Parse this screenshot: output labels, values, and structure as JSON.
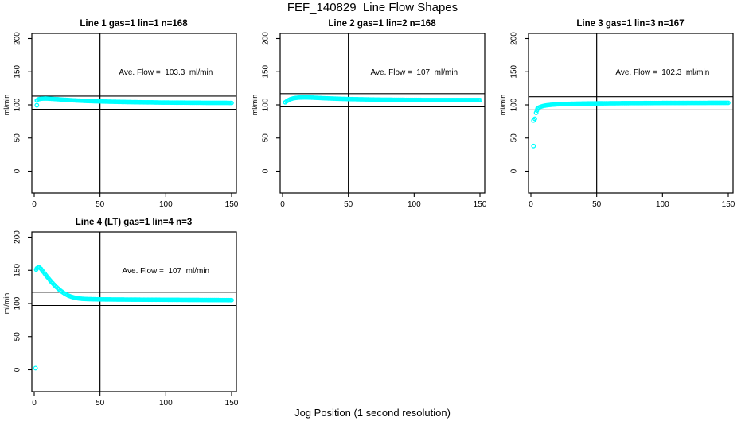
{
  "title": "FEF_140829  Line Flow Shapes",
  "xlabel": "Jog Position (1 second resolution)",
  "marker_color": "#00ffff",
  "axis_color": "#000000",
  "chart_data": [
    {
      "type": "scatter",
      "title": "Line 1 gas=1 lin=1 n=168",
      "annotation": "Ave. Flow =  103.3  ml/min",
      "ave_flow": 103.3,
      "n": 168,
      "ylabel": "ml/min",
      "marker": "open-circle",
      "xticks": [
        0,
        50,
        100,
        150
      ],
      "yticks": [
        0,
        50,
        100,
        150,
        200
      ],
      "xlim": [
        -2,
        154
      ],
      "ylim": [
        -33,
        208
      ],
      "vline": 50,
      "hlines": [
        113.3,
        93.3
      ],
      "grid": false,
      "band": [
        [
          2,
          106.8
        ],
        [
          3,
          108.2
        ],
        [
          4,
          108.8
        ],
        [
          5,
          109.1
        ],
        [
          6,
          109.4
        ],
        [
          8,
          109.6
        ],
        [
          10,
          109.5
        ],
        [
          12,
          109.3
        ],
        [
          15,
          108.9
        ],
        [
          18,
          108.5
        ],
        [
          21,
          108.0
        ],
        [
          24,
          107.6
        ],
        [
          27,
          107.2
        ],
        [
          30,
          106.8
        ],
        [
          34,
          106.4
        ],
        [
          38,
          106.0
        ],
        [
          42,
          105.7
        ],
        [
          46,
          105.4
        ],
        [
          50,
          105.2
        ],
        [
          55,
          104.9
        ],
        [
          60,
          104.7
        ],
        [
          66,
          104.4
        ],
        [
          72,
          104.2
        ],
        [
          78,
          104.0
        ],
        [
          84,
          103.8
        ],
        [
          90,
          103.7
        ],
        [
          96,
          103.5
        ],
        [
          102,
          103.4
        ],
        [
          110,
          103.3
        ],
        [
          118,
          103.2
        ],
        [
          126,
          103.1
        ],
        [
          134,
          103.0
        ],
        [
          142,
          103.0
        ],
        [
          150,
          102.9
        ]
      ],
      "outliers": [
        [
          2,
          99.4
        ]
      ]
    },
    {
      "type": "scatter",
      "title": "Line 2 gas=1 lin=2 n=168",
      "annotation": "Ave. Flow =  107  ml/min",
      "ave_flow": 107,
      "n": 168,
      "ylabel": "ml/min",
      "marker": "open-circle",
      "xticks": [
        0,
        50,
        100,
        150
      ],
      "yticks": [
        0,
        50,
        100,
        150,
        200
      ],
      "xlim": [
        -2,
        154
      ],
      "ylim": [
        -33,
        208
      ],
      "vline": 50,
      "hlines": [
        117,
        97
      ],
      "grid": false,
      "band": [
        [
          2,
          103.8
        ],
        [
          3,
          105.2
        ],
        [
          4,
          106.5
        ],
        [
          5,
          107.6
        ],
        [
          6,
          108.5
        ],
        [
          7,
          109.2
        ],
        [
          8,
          109.8
        ],
        [
          10,
          110.5
        ],
        [
          12,
          110.9
        ],
        [
          14,
          111.1
        ],
        [
          16,
          111.2
        ],
        [
          18,
          111.2
        ],
        [
          20,
          111.1
        ],
        [
          23,
          110.9
        ],
        [
          26,
          110.6
        ],
        [
          29,
          110.3
        ],
        [
          32,
          110.0
        ],
        [
          36,
          109.7
        ],
        [
          40,
          109.4
        ],
        [
          44,
          109.1
        ],
        [
          48,
          108.9
        ],
        [
          52,
          108.7
        ],
        [
          57,
          108.5
        ],
        [
          62,
          108.3
        ],
        [
          68,
          108.1
        ],
        [
          74,
          107.9
        ],
        [
          80,
          107.8
        ],
        [
          86,
          107.7
        ],
        [
          92,
          107.6
        ],
        [
          100,
          107.5
        ],
        [
          110,
          107.4
        ],
        [
          120,
          107.4
        ],
        [
          130,
          107.3
        ],
        [
          140,
          107.3
        ],
        [
          150,
          107.3
        ]
      ],
      "outliers": []
    },
    {
      "type": "scatter",
      "title": "Line 3 gas=1 lin=3 n=167",
      "annotation": "Ave. Flow =  102.3  ml/min",
      "ave_flow": 102.3,
      "n": 167,
      "ylabel": "ml/min",
      "marker": "open-circle",
      "xticks": [
        0,
        50,
        100,
        150
      ],
      "yticks": [
        0,
        50,
        100,
        150,
        200
      ],
      "xlim": [
        -2,
        154
      ],
      "ylim": [
        -33,
        208
      ],
      "vline": 50,
      "hlines": [
        112.3,
        92.3
      ],
      "grid": false,
      "band": [
        [
          5,
          94.3
        ],
        [
          6,
          95.8
        ],
        [
          7,
          96.8
        ],
        [
          8,
          97.5
        ],
        [
          9,
          98.1
        ],
        [
          10,
          98.6
        ],
        [
          12,
          99.3
        ],
        [
          14,
          99.8
        ],
        [
          16,
          100.2
        ],
        [
          18,
          100.5
        ],
        [
          20,
          100.8
        ],
        [
          23,
          101.1
        ],
        [
          26,
          101.3
        ],
        [
          29,
          101.5
        ],
        [
          32,
          101.7
        ],
        [
          36,
          101.8
        ],
        [
          40,
          102.0
        ],
        [
          45,
          102.1
        ],
        [
          50,
          102.2
        ],
        [
          56,
          102.3
        ],
        [
          62,
          102.4
        ],
        [
          68,
          102.5
        ],
        [
          75,
          102.6
        ],
        [
          82,
          102.6
        ],
        [
          90,
          102.7
        ],
        [
          100,
          102.8
        ],
        [
          110,
          102.8
        ],
        [
          120,
          102.9
        ],
        [
          130,
          102.9
        ],
        [
          140,
          103.0
        ],
        [
          150,
          103.0
        ]
      ],
      "outliers": [
        [
          2,
          38
        ],
        [
          2,
          76.5
        ],
        [
          3,
          79
        ],
        [
          4,
          88
        ],
        [
          4.5,
          91.5
        ]
      ]
    },
    {
      "type": "scatter",
      "title": "Line 4 (LT) gas=1 lin=4 n=3",
      "annotation": "Ave. Flow =  107  ml/min",
      "ave_flow": 107,
      "n": 3,
      "ylabel": "ml/min",
      "marker": "open-circle",
      "xticks": [
        0,
        50,
        100,
        150
      ],
      "yticks": [
        0,
        50,
        100,
        150,
        200
      ],
      "xlim": [
        -2,
        154
      ],
      "ylim": [
        -33,
        208
      ],
      "vline": 50,
      "hlines": [
        117,
        97
      ],
      "grid": false,
      "band": [
        [
          1.5,
          151
        ],
        [
          2,
          153
        ],
        [
          3,
          154.5
        ],
        [
          4,
          154.2
        ],
        [
          5,
          152.5
        ],
        [
          6,
          150.2
        ],
        [
          7,
          147.6
        ],
        [
          8,
          145.0
        ],
        [
          9,
          142.4
        ],
        [
          10,
          139.9
        ],
        [
          11,
          137.4
        ],
        [
          12,
          135.0
        ],
        [
          13,
          132.7
        ],
        [
          14,
          130.5
        ],
        [
          15,
          128.4
        ],
        [
          16,
          126.4
        ],
        [
          17,
          124.5
        ],
        [
          18,
          122.7
        ],
        [
          19,
          121.0
        ],
        [
          20,
          119.4
        ],
        [
          21,
          117.9
        ],
        [
          22,
          116.5
        ],
        [
          23,
          115.2
        ],
        [
          24,
          114.0
        ],
        [
          25,
          112.9
        ],
        [
          26,
          111.9
        ],
        [
          28,
          110.3
        ],
        [
          30,
          109.1
        ],
        [
          32,
          108.2
        ],
        [
          34,
          107.6
        ],
        [
          36,
          107.2
        ],
        [
          38,
          106.9
        ],
        [
          40,
          106.7
        ],
        [
          44,
          106.5
        ],
        [
          48,
          106.3
        ],
        [
          52,
          106.2
        ],
        [
          58,
          106.1
        ],
        [
          64,
          106.0
        ],
        [
          72,
          105.9
        ],
        [
          80,
          105.8
        ],
        [
          90,
          105.7
        ],
        [
          100,
          105.6
        ],
        [
          110,
          105.5
        ],
        [
          120,
          105.4
        ],
        [
          130,
          105.3
        ],
        [
          140,
          105.2
        ],
        [
          150,
          105.1
        ]
      ],
      "outliers": [
        [
          1,
          2.5
        ]
      ]
    }
  ]
}
